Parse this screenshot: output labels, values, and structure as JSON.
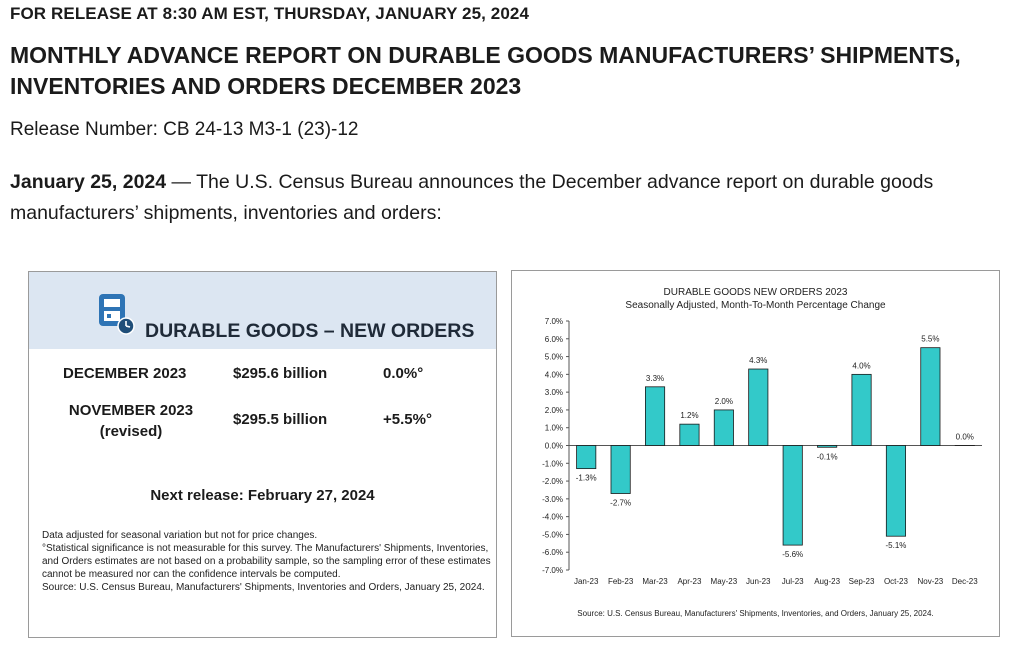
{
  "header": {
    "release_line": "FOR RELEASE AT 8:30 AM EST, THURSDAY, JANUARY 25, 2024",
    "title_line1": "MONTHLY ADVANCE REPORT ON DURABLE GOODS MANUFACTURERS’ SHIPMENTS,",
    "title_line2": "INVENTORIES AND ORDERS DECEMBER 2023",
    "release_number": "Release Number: CB 24-13 M3-1 (23)-12"
  },
  "intro": {
    "date": "January 25, 2024",
    "text": " — The U.S. Census Bureau announces the December advance report on durable goods manufacturers’ shipments, inventories and orders:"
  },
  "summary": {
    "icon": "factory-clock-icon",
    "title": "DURABLE GOODS – NEW ORDERS",
    "rows": [
      {
        "period": "DECEMBER 2023",
        "period_note": "",
        "value": "$295.6 billion",
        "pct": "0.0%°"
      },
      {
        "period": "NOVEMBER 2023",
        "period_note": "(revised)",
        "value": "$295.5 billion",
        "pct": "+5.5%°"
      }
    ],
    "next_release": "Next release: February 27, 2024",
    "notes": [
      "Data adjusted for seasonal variation but not for price changes.",
      "°Statistical significance is not measurable for this survey.  The Manufacturers' Shipments, Inventories, and Orders estimates are not based on a probability sample, so the sampling error of these estimates cannot be measured nor can the confidence intervals be computed.",
      "Source: U.S. Census Bureau, Manufacturers' Shipments, Inventories and Orders, January 25, 2024."
    ]
  },
  "chart_data": {
    "type": "bar",
    "title": "DURABLE GOODS NEW ORDERS 2023",
    "subtitle": "Seasonally Adjusted,  Month-To-Month Percentage Change",
    "categories": [
      "Jan-23",
      "Feb-23",
      "Mar-23",
      "Apr-23",
      "May-23",
      "Jun-23",
      "Jul-23",
      "Aug-23",
      "Sep-23",
      "Oct-23",
      "Nov-23",
      "Dec-23"
    ],
    "values": [
      -1.3,
      -2.7,
      3.3,
      1.2,
      2.0,
      4.3,
      -5.6,
      -0.1,
      4.0,
      -5.1,
      5.5,
      0.0
    ],
    "data_labels": [
      "-1.3%",
      "-2.7%",
      "3.3%",
      "1.2%",
      "2.0%",
      "4.3%",
      "-5.6%",
      "-0.1%",
      "4.0%",
      "-5.1%",
      "5.5%",
      "0.0%"
    ],
    "yticks": [
      "7.0%",
      "6.0%",
      "5.0%",
      "4.0%",
      "3.0%",
      "2.0%",
      "1.0%",
      "0.0%",
      "-1.0%",
      "-2.0%",
      "-3.0%",
      "-4.0%",
      "-5.0%",
      "-6.0%",
      "-7.0%"
    ],
    "ylim": [
      -7,
      7
    ],
    "grid": false,
    "bar_color": "#33c9c9",
    "source": "Source: U.S. Census Bureau, Manufacturers' Shipments, Inventories, and Orders, January 25, 2024."
  }
}
